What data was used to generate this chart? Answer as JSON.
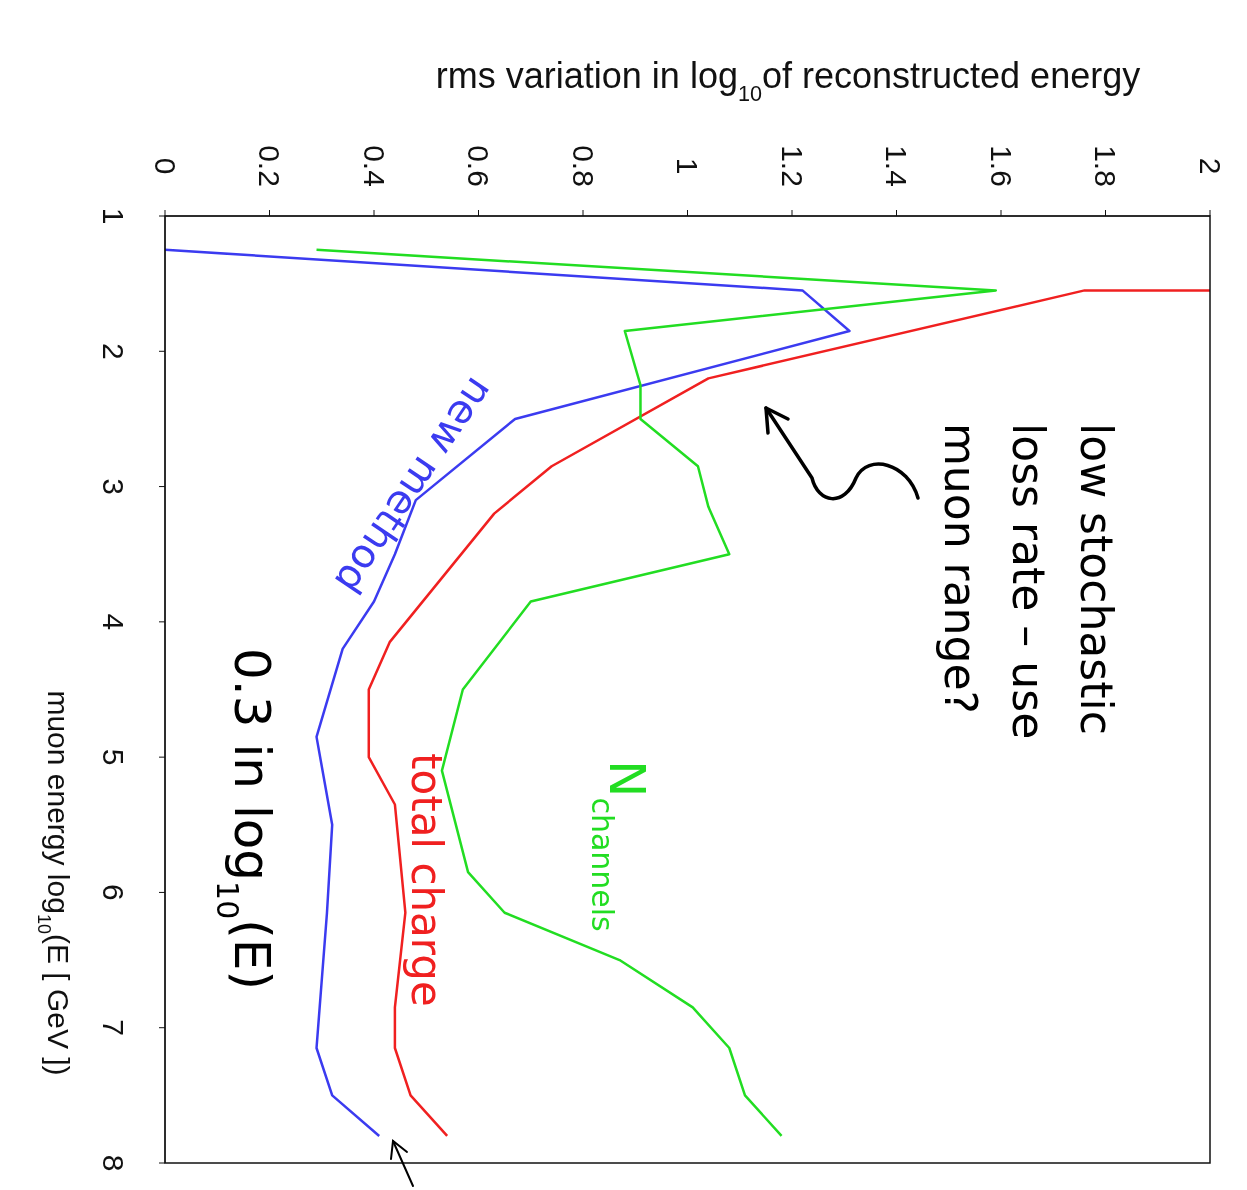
{
  "chart_data": {
    "type": "line",
    "orientation": "horizontal",
    "xlabel": "rms variation in log$_{10}$of reconstructed energy",
    "ylabel": "muon energy log$_{10}$(E [ GeV ])",
    "xlim": [
      0,
      2
    ],
    "xticks": [
      0,
      0.2,
      0.4,
      0.6,
      0.8,
      1,
      1.2,
      1.4,
      1.6,
      1.8,
      2
    ],
    "ylim": [
      8,
      1
    ],
    "yticks": [
      1,
      2,
      3,
      4,
      5,
      6,
      7,
      8
    ],
    "line_style": "solid",
    "series": [
      {
        "name": "new method",
        "color": "#3b3bf0",
        "x": [
          1.25,
          1.55,
          1.85,
          2.5,
          3.1,
          3.5,
          3.85,
          4.2,
          4.85,
          5.5,
          6.15,
          7.15,
          7.5,
          7.8
        ],
        "values": [
          0,
          1.22,
          1.31,
          0.67,
          0.48,
          0.44,
          0.4,
          0.34,
          0.29,
          0.32,
          0.31,
          0.29,
          0.32,
          0.41
        ]
      },
      {
        "name": "total charge",
        "color": "#f02020",
        "x": [
          1.55,
          1.55,
          2.2,
          2.85,
          3.2,
          4.15,
          4.5,
          5,
          5.35,
          6.15,
          6.85,
          7.15,
          7.5,
          7.8
        ],
        "values": [
          2,
          1.76,
          1.04,
          0.74,
          0.63,
          0.43,
          0.39,
          0.39,
          0.44,
          0.46,
          0.44,
          0.44,
          0.47,
          0.54
        ]
      },
      {
        "name": "N$_{channels}$",
        "color": "#22dd22",
        "x": [
          1.25,
          1.55,
          1.85,
          2.25,
          2.5,
          2.85,
          3.15,
          3.5,
          3.85,
          4.5,
          5.1,
          5.85,
          6.15,
          6.5,
          6.85,
          7.15,
          7.5,
          7.8
        ],
        "values": [
          0.29,
          1.59,
          0.88,
          0.91,
          0.91,
          1.02,
          1.04,
          1.08,
          0.7,
          0.57,
          0.53,
          0.58,
          0.65,
          0.87,
          1.01,
          1.08,
          1.11,
          1.18
        ]
      }
    ],
    "annotations": [
      "low stochastic loss rate – use muon range?",
      "0.3 in log$_{10}$(E)"
    ]
  }
}
